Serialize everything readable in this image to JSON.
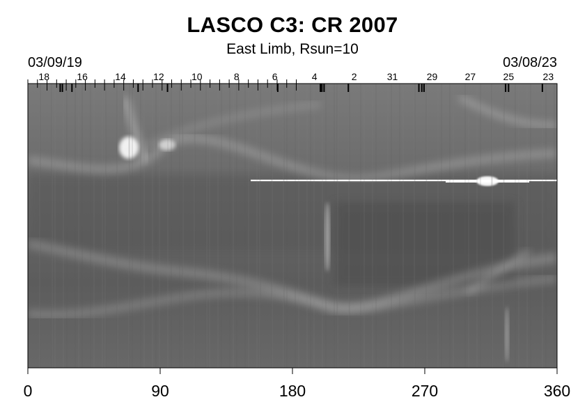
{
  "chart_data": {
    "type": "heatmap",
    "title": "LASCO C3: CR 2007",
    "subtitle": "East Limb, Rsun=10",
    "date_start": "03/09/19",
    "date_end": "03/08/23",
    "xlim": [
      0,
      360
    ],
    "xticks": [
      0,
      90,
      180,
      270,
      360
    ],
    "xtick_labels": [
      "0",
      "90",
      "180",
      "270",
      "360"
    ],
    "day_labels": [
      "18",
      "16",
      "14",
      "12",
      "10",
      "8",
      "6",
      "4",
      "2",
      "31",
      "29",
      "27",
      "25",
      "23"
    ],
    "day_label_positions_deg": [
      11,
      37,
      63,
      89,
      115,
      142,
      168,
      195,
      222,
      248,
      275,
      301,
      327,
      354
    ],
    "colormap": "grayscale",
    "background_gray": "#6e6e6e"
  }
}
